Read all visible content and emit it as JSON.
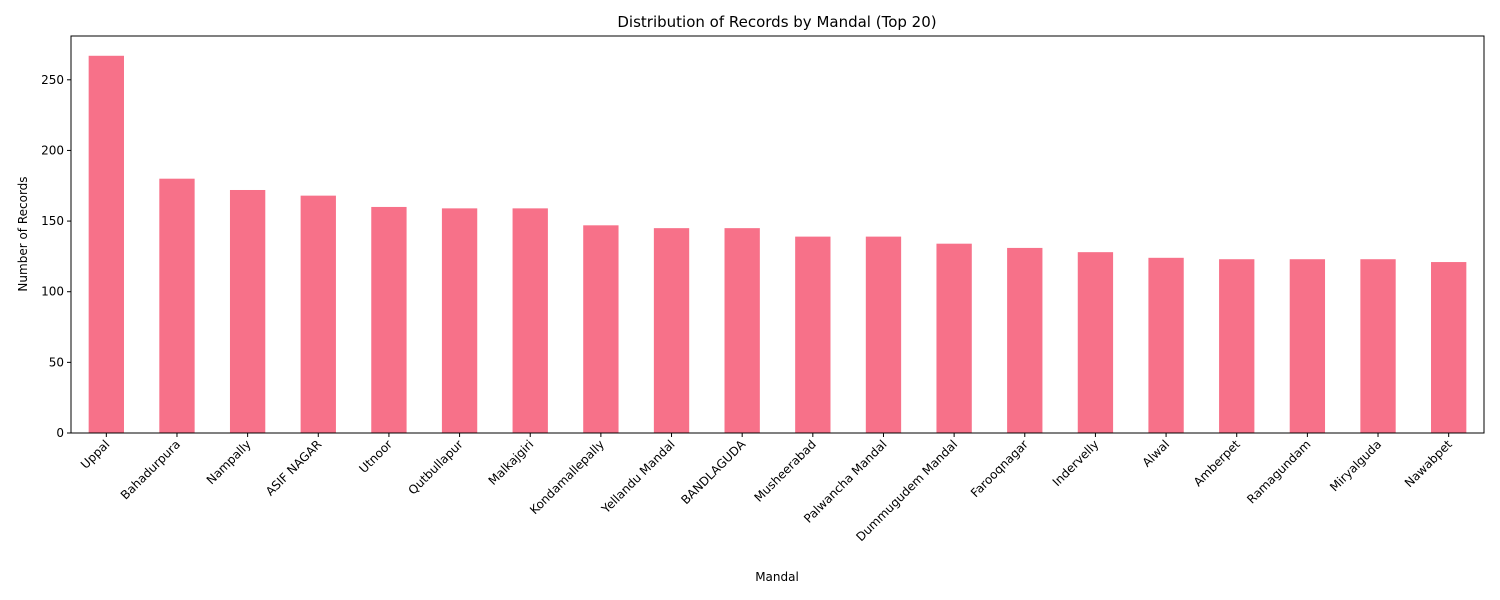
{
  "chart_data": {
    "type": "bar",
    "title": "Distribution of Records by Mandal (Top 20)",
    "xlabel": "Mandal",
    "ylabel": "Number of Records",
    "categories": [
      "Uppal",
      "Bahadurpura",
      "Nampally",
      "ASIF NAGAR",
      "Utnoor",
      "Qutbullapur",
      "Malkajgiri",
      "Kondamallepally",
      "Yellandu Mandal",
      "BANDLAGUDA",
      "Musheerabad",
      "Palwancha Mandal",
      "Dummugudem Mandal",
      "Farooqnagar",
      "Indervelly",
      "Alwal",
      "Amberpet",
      "Ramagundam",
      "Miryalguda",
      "Nawabpet"
    ],
    "values": [
      267,
      180,
      172,
      168,
      160,
      159,
      159,
      147,
      145,
      145,
      139,
      139,
      134,
      131,
      128,
      124,
      123,
      123,
      123,
      121
    ],
    "ylim": [
      0,
      281
    ],
    "yticks": [
      0,
      50,
      100,
      150,
      200,
      250
    ],
    "grid": false,
    "legend": "none",
    "bar_color": "#f77189",
    "xtick_rotation": 45
  }
}
